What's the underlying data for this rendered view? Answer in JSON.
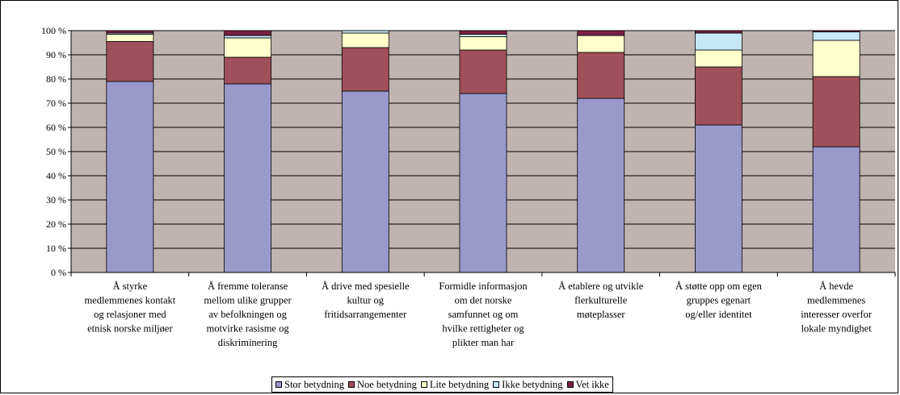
{
  "chart_data": {
    "type": "bar",
    "stacked": true,
    "categories": [
      [
        "Å styrke",
        "medlemmenes kontakt",
        "og relasjoner med",
        "etnisk norske miljøer"
      ],
      [
        "Å fremme toleranse",
        "mellom ulike grupper",
        "av befolkningen og",
        "motvirke rasisme og",
        "diskriminering"
      ],
      [
        "Å drive med spesielle",
        "kultur og",
        "fritidsarrangementer"
      ],
      [
        "Formidle informasjon",
        "om det norske",
        "samfunnet og om",
        "hvilke rettigheter og",
        "plikter man har"
      ],
      [
        "Å etablere og utvikle",
        "flerkulturelle",
        "møteplasser"
      ],
      [
        "Å støtte opp om egen",
        "gruppes egenart",
        "og/eller identitet"
      ],
      [
        "Å hevde",
        "medlemmenes",
        "interesser overfor",
        "lokale myndighet"
      ]
    ],
    "series": [
      {
        "name": "Stor betydning",
        "color": "#9999cc",
        "values": [
          79,
          78,
          75,
          74,
          72,
          61,
          52
        ]
      },
      {
        "name": "Noe betydning",
        "color": "#a0505a",
        "values": [
          16.5,
          11,
          18,
          18,
          19,
          24,
          29
        ]
      },
      {
        "name": "Lite betydning",
        "color": "#ffffcc",
        "values": [
          3,
          8,
          6,
          5.5,
          7,
          7,
          15
        ]
      },
      {
        "name": "Ikke betydning",
        "color": "#c6e8f6",
        "values": [
          0.5,
          1,
          1,
          1,
          0,
          7,
          3.5
        ]
      },
      {
        "name": "Vet ikke",
        "color": "#7a1f45",
        "values": [
          1,
          2,
          0,
          1.5,
          2,
          1,
          0.5
        ]
      }
    ],
    "yticks": [
      "0 %",
      "10 %",
      "20 %",
      "30 %",
      "40 %",
      "50 %",
      "60 %",
      "70 %",
      "80 %",
      "90 %",
      "100 %"
    ],
    "ylim": [
      0,
      100
    ],
    "plot_background": "#c0b4b0",
    "grid": true,
    "legend_position": "bottom"
  }
}
